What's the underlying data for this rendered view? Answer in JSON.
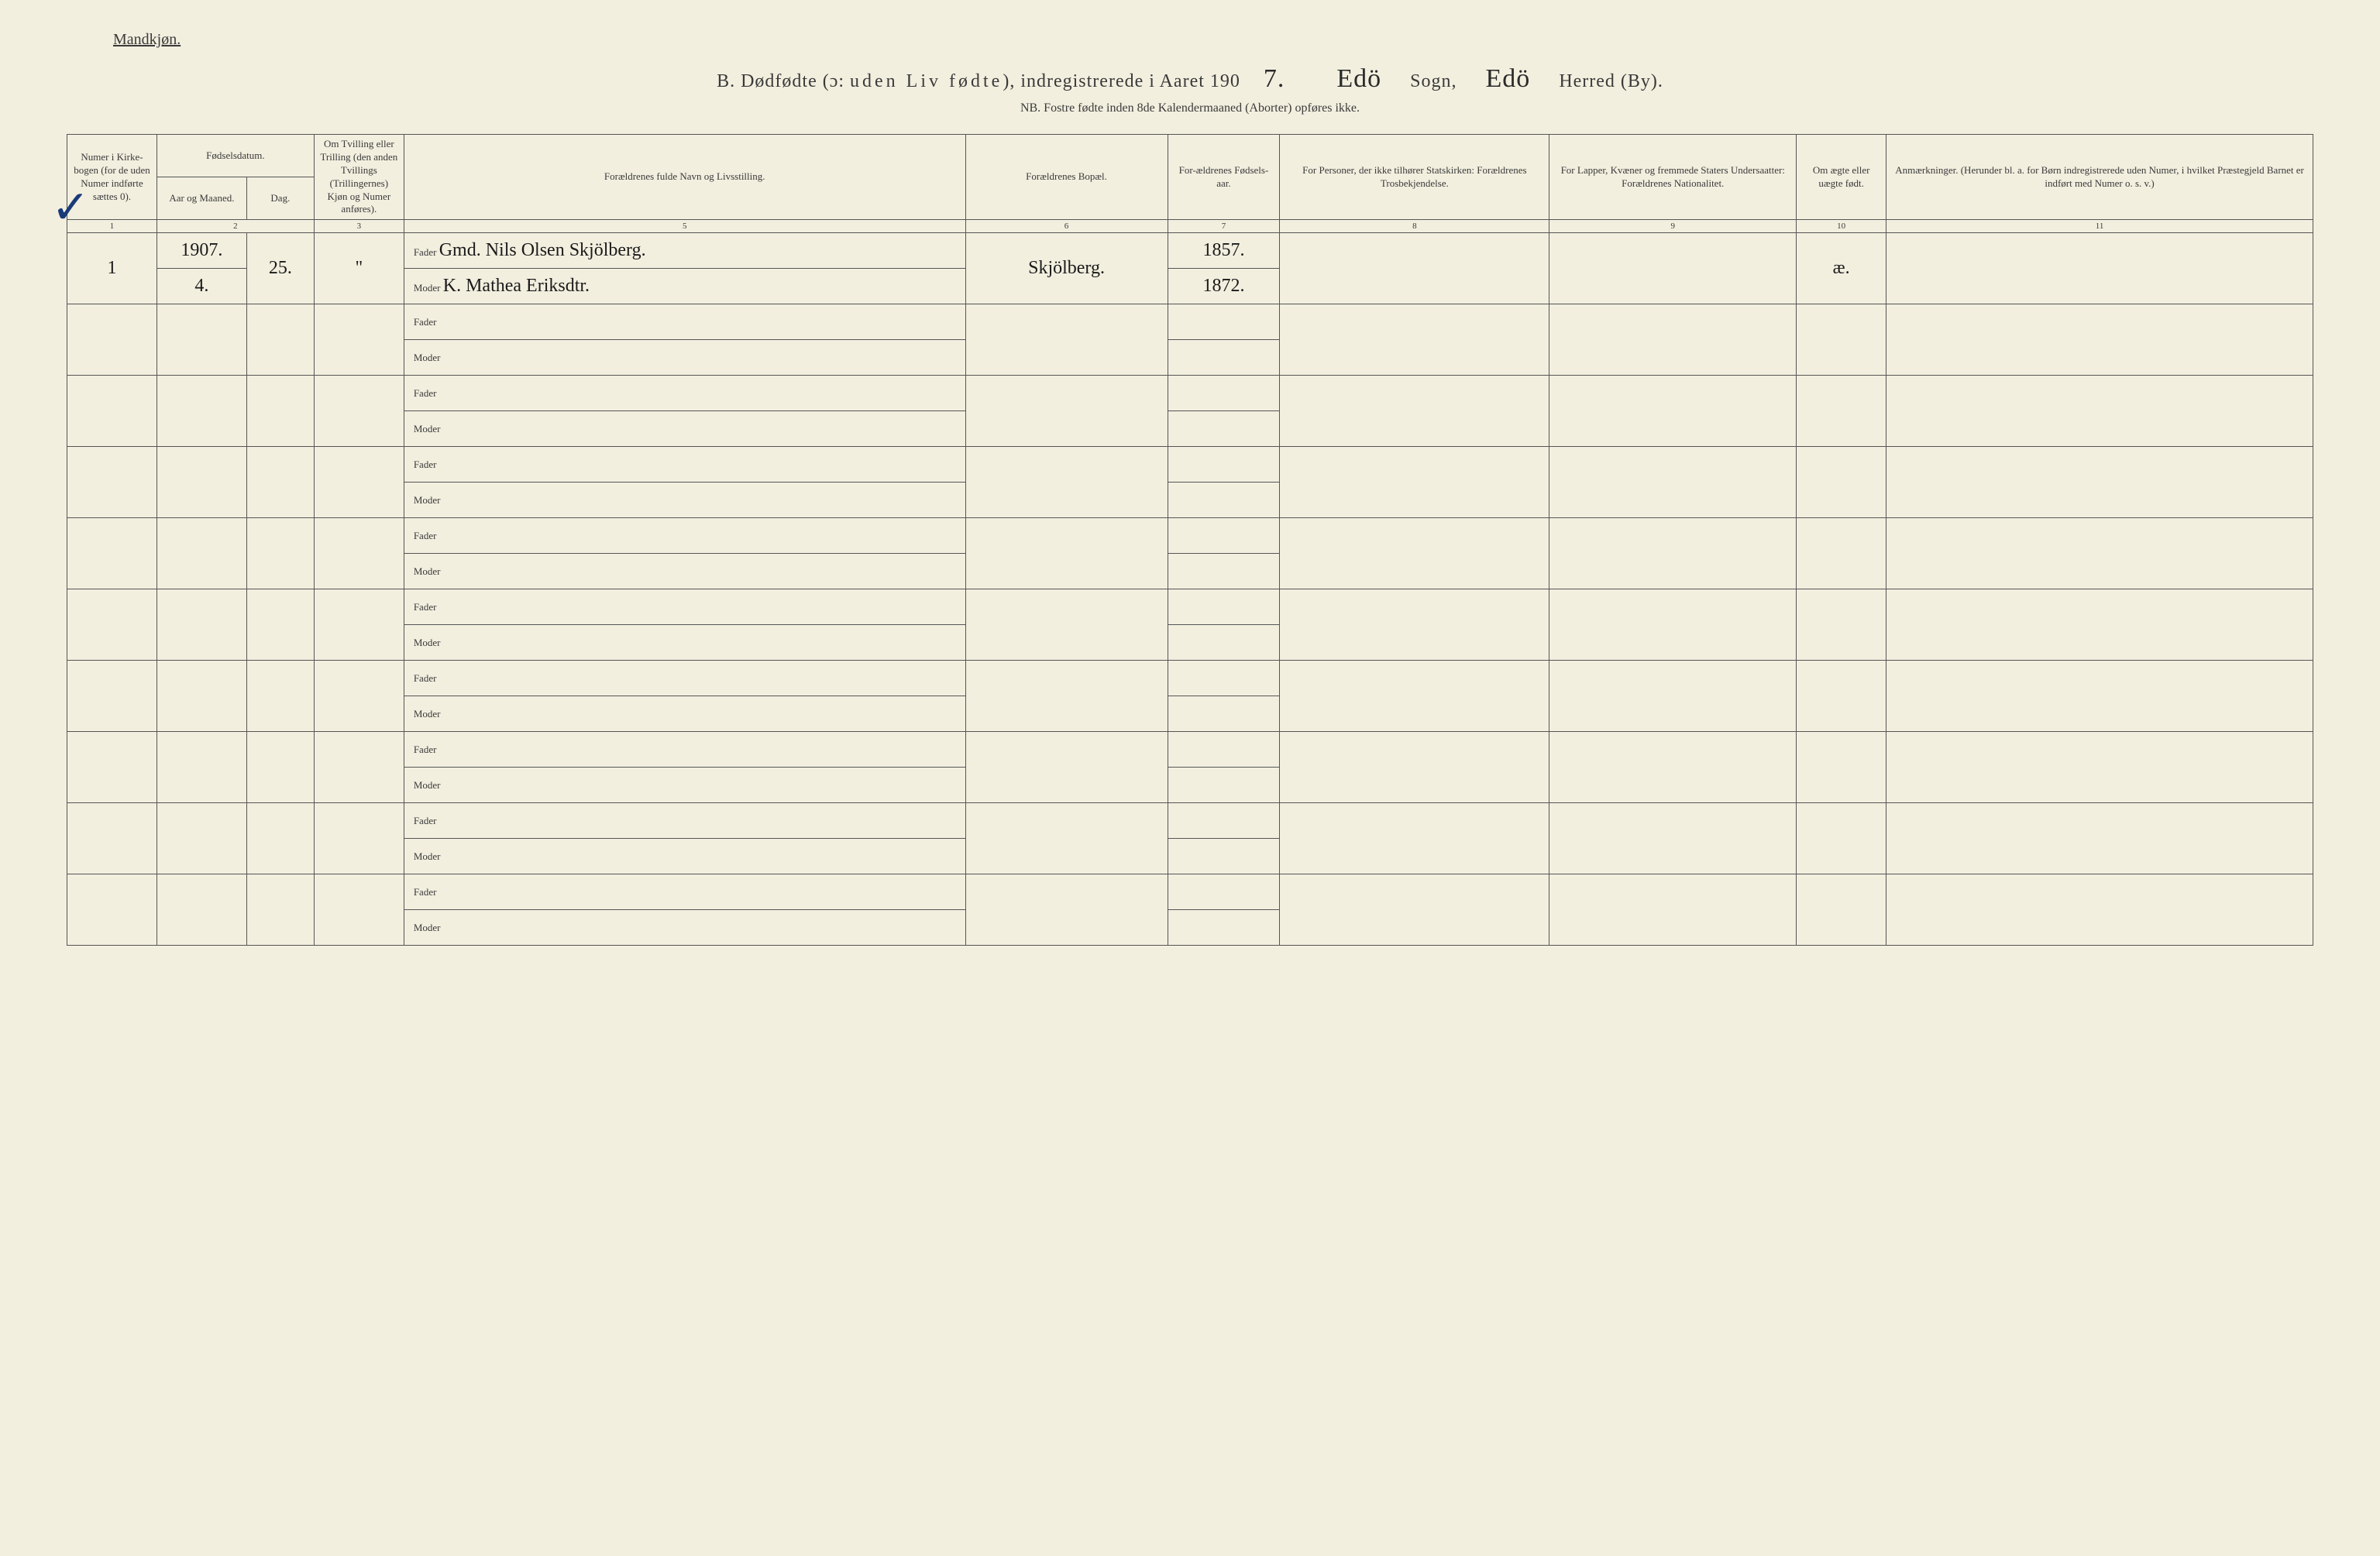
{
  "header": {
    "gender": "Mandkjøn.",
    "title_prefix": "B.  Dødfødte (ɔ: ",
    "title_spaced": "uden Liv fødte",
    "title_mid": "), indregistrerede i Aaret 190",
    "year_digit": "7.",
    "sogn_hw": "Edö",
    "sogn_label": "Sogn,",
    "herred_hw": "Edö",
    "herred_label": "Herred (By).",
    "subtitle": "NB.  Fostre fødte inden 8de Kalendermaaned (Aborter) opføres ikke."
  },
  "columns": {
    "c1": "Numer i Kirke-bogen (for de uden Numer indførte sættes 0).",
    "c2": "Fødselsdatum.",
    "c2a": "Aar og Maaned.",
    "c2b": "Dag.",
    "c3": "Om Tvilling eller Trilling (den anden Tvillings (Trillingernes) Kjøn og Numer anføres).",
    "c5": "Forældrenes fulde Navn og Livsstilling.",
    "c6": "Forældrenes Bopæl.",
    "c7": "For-ældrenes Fødsels-aar.",
    "c8": "For Personer, der ikke tilhører Statskirken: Forældrenes Trosbekjendelse.",
    "c9": "For Lapper, Kvæner og fremmede Staters Undersaatter: Forældrenes Nationalitet.",
    "c10": "Om ægte eller uægte født.",
    "c11": "Anmærkninger. (Herunder bl. a. for Børn indregistrerede uden Numer, i hvilket Præstegjeld Barnet er indført med Numer o. s. v.)"
  },
  "colnums": [
    "1",
    "2",
    "3",
    "4",
    "5",
    "6",
    "7",
    "8",
    "9",
    "10",
    "11"
  ],
  "fm": {
    "fader": "Fader",
    "moder": "Moder"
  },
  "entry1": {
    "numer": "1",
    "aar_mnd_top": "1907.",
    "aar_mnd_bot": "4.",
    "dag": "25.",
    "tvilling": "\"",
    "fader": "Gmd. Nils Olsen Skjölberg.",
    "moder": "K. Mathea Eriksdtr.",
    "bopael": "Skjölberg.",
    "faar_f": "1857.",
    "faar_m": "1872.",
    "aegte": "æ."
  },
  "colors": {
    "bg": "#f2efdf",
    "ink": "#3a3a3a",
    "rule": "#555555",
    "check": "#1a3a7a"
  },
  "blank_rows": 9
}
